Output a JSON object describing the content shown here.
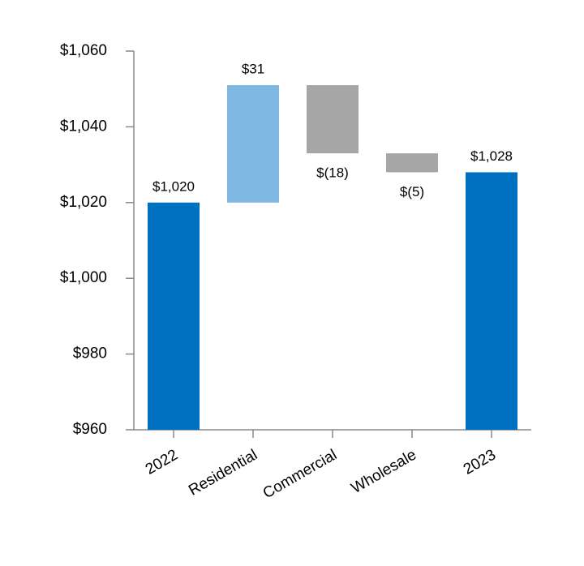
{
  "chart_data": {
    "type": "waterfall",
    "categories": [
      "2022",
      "Residential",
      "Commercial",
      "Wholesale",
      "2023"
    ],
    "values": [
      1020,
      31,
      -18,
      -5,
      1028
    ],
    "value_labels": [
      "$1,020",
      "$31",
      "$(18)",
      "$(5)",
      "$1,028"
    ],
    "colors": [
      "#0070c0",
      "#7fb8e2",
      "#a6a6a6",
      "#a6a6a6",
      "#0070c0"
    ],
    "ylim": [
      960,
      1060
    ],
    "yticks": [
      {
        "value": 960,
        "label": "$960"
      },
      {
        "value": 980,
        "label": "$980"
      },
      {
        "value": 1000,
        "label": "$1,000"
      },
      {
        "value": 1020,
        "label": "$1,020"
      },
      {
        "value": 1040,
        "label": "$1,040"
      },
      {
        "value": 1060,
        "label": "$1,060"
      }
    ]
  }
}
